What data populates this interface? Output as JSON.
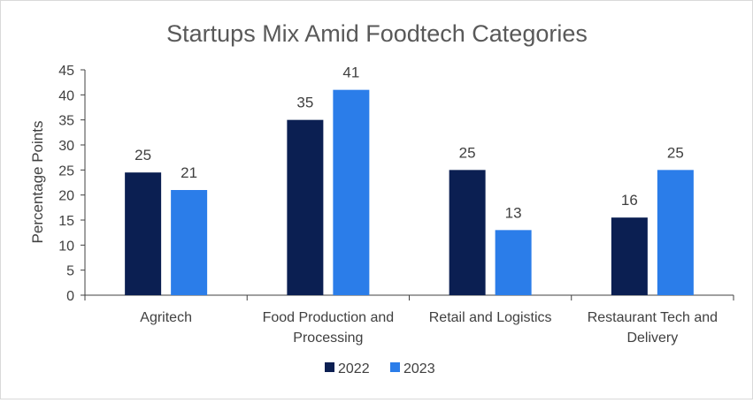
{
  "chart_data": {
    "type": "bar",
    "title": "Startups Mix Amid Foodtech Categories",
    "ylabel": "Percentage Points",
    "xlabel": "",
    "ylim": [
      0,
      45
    ],
    "yticks": [
      0,
      5,
      10,
      15,
      20,
      25,
      30,
      35,
      40,
      45
    ],
    "grid": false,
    "legend_position": "bottom",
    "categories": [
      [
        "Agritech"
      ],
      [
        "Food Production and",
        "Processing"
      ],
      [
        "Retail and Logistics"
      ],
      [
        "Restaurant Tech and",
        "Delivery"
      ]
    ],
    "series": [
      {
        "name": "2022",
        "color": "#0b1f52",
        "values": [
          24.5,
          35,
          25,
          15.5
        ],
        "labels": [
          "25",
          "35",
          "25",
          "16"
        ]
      },
      {
        "name": "2023",
        "color": "#2b7de9",
        "values": [
          21,
          41,
          13,
          25
        ],
        "labels": [
          "21",
          "41",
          "13",
          "25"
        ]
      }
    ]
  }
}
